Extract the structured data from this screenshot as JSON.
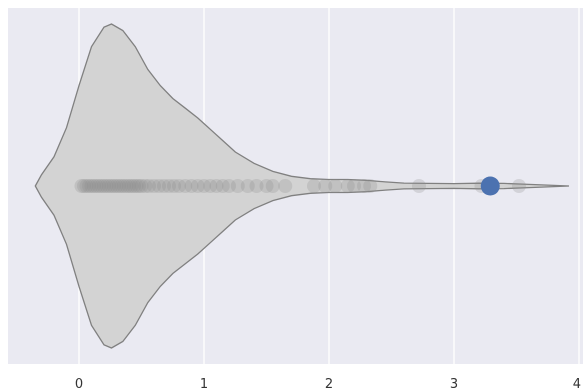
{
  "chart_data": {
    "type": "violin",
    "orientation": "horizontal",
    "xlim": [
      -0.55,
      4.0
    ],
    "x_ticks": [
      0,
      1,
      2,
      3,
      4
    ],
    "x_tick_labels": [
      "0",
      "1",
      "2",
      "3",
      "4"
    ],
    "xlabel": "",
    "ylabel": "",
    "grid": true,
    "legend": "none",
    "colors": {
      "background": "#EAEAF2",
      "grid": "#FFFFFF",
      "violin_fill": "#D3D3D3",
      "violin_edge": "#808080",
      "points": "#8C8C8C",
      "highlight": "#4C72B0"
    },
    "violin_density": [
      [
        -0.35,
        0.0
      ],
      [
        -0.3,
        0.07
      ],
      [
        -0.2,
        0.18
      ],
      [
        -0.1,
        0.36
      ],
      [
        0.0,
        0.62
      ],
      [
        0.1,
        0.86
      ],
      [
        0.2,
        0.98
      ],
      [
        0.26,
        1.0
      ],
      [
        0.35,
        0.96
      ],
      [
        0.45,
        0.86
      ],
      [
        0.55,
        0.72
      ],
      [
        0.65,
        0.62
      ],
      [
        0.75,
        0.54
      ],
      [
        0.85,
        0.48
      ],
      [
        0.95,
        0.42
      ],
      [
        1.05,
        0.35
      ],
      [
        1.15,
        0.28
      ],
      [
        1.25,
        0.21
      ],
      [
        1.4,
        0.14
      ],
      [
        1.55,
        0.09
      ],
      [
        1.7,
        0.06
      ],
      [
        1.85,
        0.045
      ],
      [
        2.0,
        0.04
      ],
      [
        2.15,
        0.04
      ],
      [
        2.3,
        0.035
      ],
      [
        2.45,
        0.025
      ],
      [
        2.6,
        0.018
      ],
      [
        2.8,
        0.016
      ],
      [
        3.0,
        0.015
      ],
      [
        3.2,
        0.017
      ],
      [
        3.4,
        0.016
      ],
      [
        3.6,
        0.01
      ],
      [
        3.8,
        0.004
      ],
      [
        3.92,
        0.0
      ]
    ],
    "points": [
      0.02,
      0.04,
      0.06,
      0.08,
      0.1,
      0.12,
      0.14,
      0.16,
      0.18,
      0.2,
      0.22,
      0.24,
      0.26,
      0.28,
      0.3,
      0.32,
      0.34,
      0.36,
      0.38,
      0.4,
      0.42,
      0.44,
      0.46,
      0.48,
      0.5,
      0.53,
      0.56,
      0.6,
      0.64,
      0.68,
      0.72,
      0.76,
      0.8,
      0.85,
      0.9,
      0.95,
      1.0,
      1.05,
      1.1,
      1.15,
      1.2,
      1.27,
      1.35,
      1.42,
      1.5,
      1.55,
      1.65,
      1.88,
      1.97,
      2.05,
      2.15,
      2.2,
      2.28,
      2.33,
      2.72,
      3.22,
      3.52
    ],
    "highlight_point": 3.29
  }
}
